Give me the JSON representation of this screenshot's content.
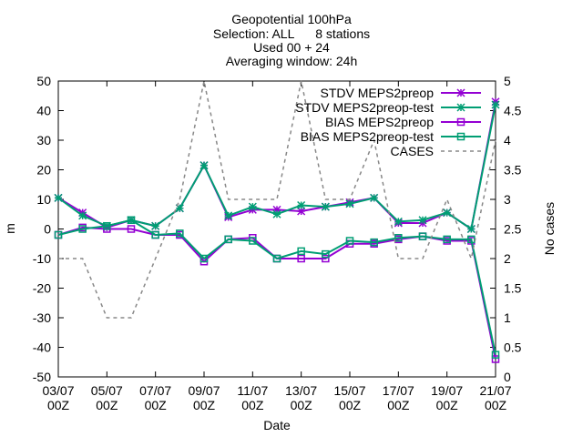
{
  "chart_data": {
    "type": "line",
    "title_lines": [
      "Geopotential 100hPa",
      "Selection: ALL      8 stations",
      "Used 00 + 24",
      "Averaging window: 24h"
    ],
    "xlabel": "Date",
    "ylabel": "m",
    "y2label": "No cases",
    "xlim": [
      0,
      18
    ],
    "ylim": [
      -50,
      50
    ],
    "y2lim": [
      0,
      5
    ],
    "yticks": [
      -50,
      -40,
      -30,
      -20,
      -10,
      0,
      10,
      20,
      30,
      40,
      50
    ],
    "y2ticks": [
      "0",
      "0.5",
      "1",
      "1.5",
      "2",
      "2.5",
      "3",
      "3.5",
      "4",
      "4.5",
      "5"
    ],
    "xticks": [
      {
        "x": 0,
        "l1": "03/07",
        "l2": "00Z"
      },
      {
        "x": 2,
        "l1": "05/07",
        "l2": "00Z"
      },
      {
        "x": 4,
        "l1": "07/07",
        "l2": "00Z"
      },
      {
        "x": 6,
        "l1": "09/07",
        "l2": "00Z"
      },
      {
        "x": 8,
        "l1": "11/07",
        "l2": "00Z"
      },
      {
        "x": 10,
        "l1": "13/07",
        "l2": "00Z"
      },
      {
        "x": 12,
        "l1": "15/07",
        "l2": "00Z"
      },
      {
        "x": 14,
        "l1": "17/07",
        "l2": "00Z"
      },
      {
        "x": 16,
        "l1": "19/07",
        "l2": "00Z"
      },
      {
        "x": 18,
        "l1": "21/07",
        "l2": "00Z"
      }
    ],
    "legend_position": "top-right",
    "series": [
      {
        "name": "STDV MEPS2preop",
        "axis": "y1",
        "color": "#9400d3",
        "marker": "star",
        "x": [
          0,
          1,
          2,
          3,
          4,
          5,
          6,
          7,
          8,
          9,
          10,
          11,
          12,
          13,
          14,
          15,
          16,
          17,
          18
        ],
        "values": [
          10.5,
          5.5,
          0.5,
          3,
          1,
          7,
          21.5,
          4,
          6.5,
          6.5,
          6,
          7.5,
          9,
          10.5,
          2,
          2,
          5.5,
          0,
          43
        ]
      },
      {
        "name": "STDV MEPS2preop-test",
        "axis": "y1",
        "color": "#009e73",
        "marker": "star",
        "x": [
          0,
          1,
          2,
          3,
          4,
          5,
          6,
          7,
          8,
          9,
          10,
          11,
          12,
          13,
          14,
          15,
          16,
          17,
          18
        ],
        "values": [
          10.5,
          4.5,
          1,
          3,
          1,
          7,
          21.5,
          4.5,
          7.5,
          5,
          8,
          7.5,
          8.5,
          10.5,
          2.5,
          3,
          5.5,
          0,
          42
        ]
      },
      {
        "name": "BIAS MEPS2preop",
        "axis": "y1",
        "color": "#9400d3",
        "marker": "box",
        "x": [
          0,
          1,
          2,
          3,
          4,
          5,
          6,
          7,
          8,
          9,
          10,
          11,
          12,
          13,
          14,
          15,
          16,
          17,
          18
        ],
        "values": [
          -2,
          0.5,
          0,
          0,
          -2,
          -2,
          -11,
          -3.5,
          -3,
          -10,
          -10,
          -10,
          -5,
          -5,
          -3.5,
          -2.5,
          -4,
          -4,
          -44
        ]
      },
      {
        "name": "BIAS MEPS2preop-test",
        "axis": "y1",
        "color": "#009e73",
        "marker": "box",
        "x": [
          0,
          1,
          2,
          3,
          4,
          5,
          6,
          7,
          8,
          9,
          10,
          11,
          12,
          13,
          14,
          15,
          16,
          17,
          18
        ],
        "values": [
          -2,
          0,
          1,
          3,
          -2,
          -1.5,
          -10,
          -3.5,
          -4,
          -10,
          -7.5,
          -8.5,
          -4,
          -4.5,
          -3,
          -2.5,
          -3.5,
          -3.5,
          -42.5
        ]
      },
      {
        "name": "CASES",
        "axis": "y2",
        "color": "#888888",
        "marker": "none",
        "dash": true,
        "x": [
          0,
          1,
          2,
          3,
          4,
          5,
          6,
          7,
          8,
          9,
          10,
          11,
          12,
          13,
          14,
          15,
          16,
          17,
          18
        ],
        "values": [
          2,
          2,
          1,
          1,
          2,
          3,
          5,
          3,
          3,
          3,
          5,
          3,
          3,
          4,
          2,
          2,
          3,
          2,
          4
        ]
      }
    ]
  }
}
